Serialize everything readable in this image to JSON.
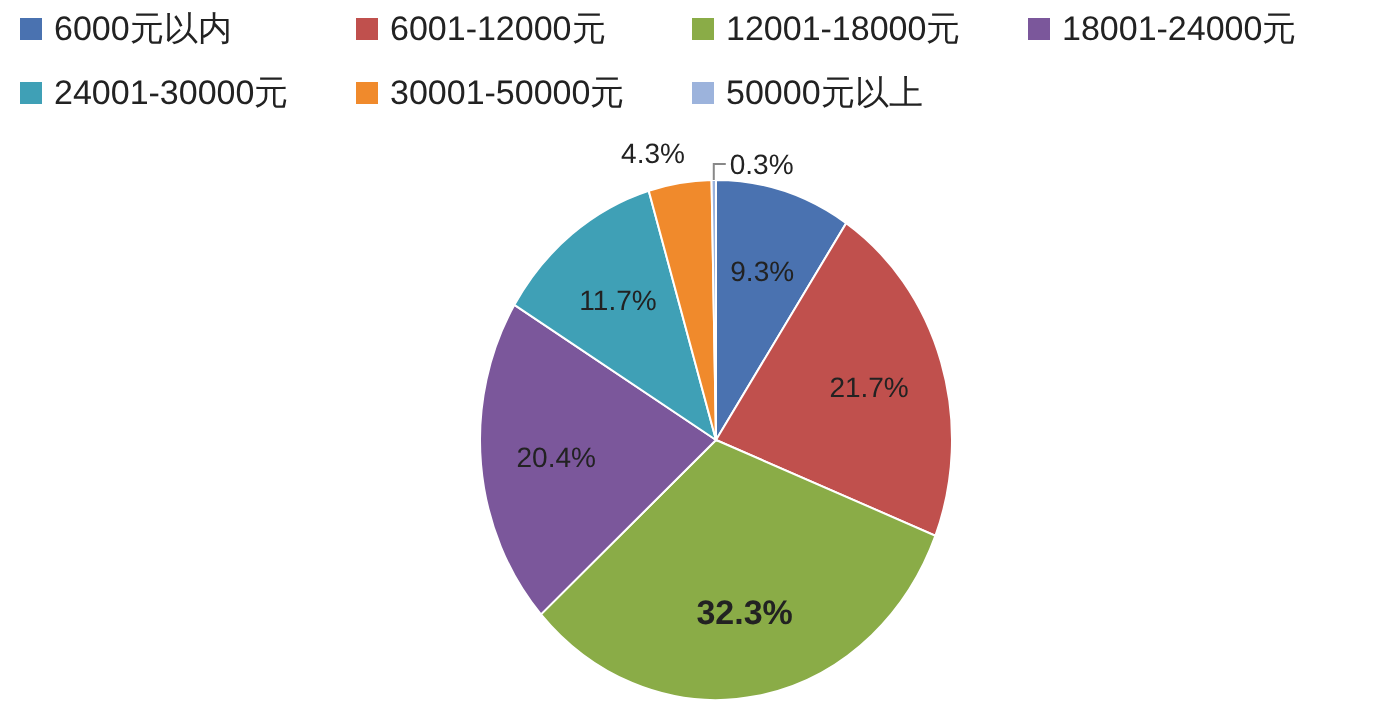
{
  "chart_data": {
    "type": "pie",
    "categories": [
      "6000元以内",
      "6001-12000元",
      "12001-18000元",
      "18001-24000元",
      "24001-30000元",
      "30001-50000元",
      "50000元以上"
    ],
    "values": [
      9.3,
      21.7,
      32.3,
      20.4,
      11.7,
      4.3,
      0.3
    ],
    "colors": [
      "#4a72b0",
      "#c0504d",
      "#8aac47",
      "#7b579b",
      "#3fa0b6",
      "#f08a2c",
      "#9cb3dc"
    ],
    "value_labels": [
      "9.3%",
      "21.7%",
      "32.3%",
      "20.4%",
      "11.7%",
      "4.3%",
      "0.3%"
    ],
    "legend": "top"
  }
}
